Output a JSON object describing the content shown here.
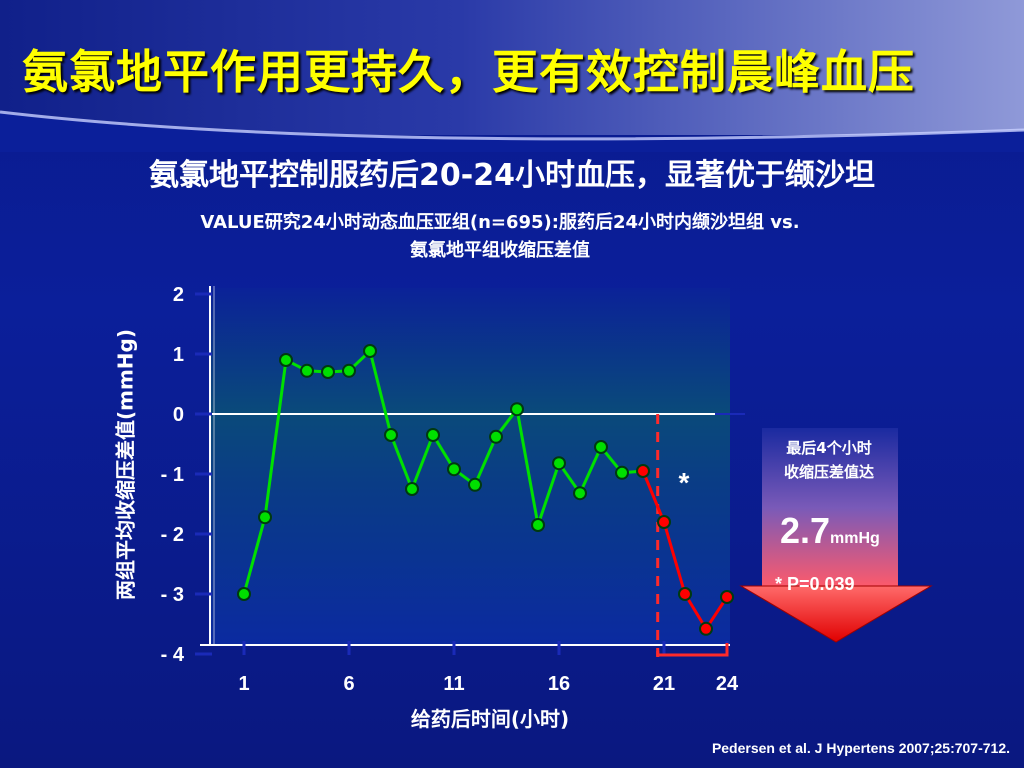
{
  "title": "氨氯地平作用更持久，更有效控制晨峰血压",
  "subtitle": "氨氯地平控制服药后20-24小时血压，显著优于缬沙坦",
  "study": {
    "line1": "VALUE研究24小时动态血压亚组(n=695):服药后24小时内缬沙坦组 vs.",
    "line2": "氨氯地平组收缩压差值"
  },
  "callout": {
    "line1": "最后4个小时",
    "line2": "收缩压差值达",
    "value": "2.7",
    "unit": "mmHg",
    "pvalue": "* P=0.039",
    "asterisk": "*"
  },
  "citation": "Pedersen et al. J Hypertens 2007;25:707-712.",
  "colors": {
    "early_series": "#00e000",
    "late_series": "#ff0000",
    "title": "#ffff00",
    "plot_bg_top": "#0a2a90",
    "plot_bg_bottom": "#006a5a"
  },
  "chart_data": {
    "type": "line",
    "xlabel": "给药后时间(小时)",
    "ylabel": "两组平均收缩压差值(mmHg)",
    "ylim": [
      -4,
      2
    ],
    "xlim": [
      1,
      24
    ],
    "yticks": [
      2,
      1,
      0,
      -1,
      -2,
      -3,
      -4
    ],
    "ytick_labels": [
      "2",
      "1",
      "0",
      "- 1",
      "- 2",
      "- 3",
      "- 4"
    ],
    "xtick_labels": [
      "1",
      "6",
      "11",
      "16",
      "21",
      "24"
    ],
    "xtick_positions": [
      1,
      6,
      11,
      16,
      21,
      24
    ],
    "x": [
      1,
      2,
      3,
      4,
      5,
      6,
      7,
      8,
      9,
      10,
      11,
      12,
      13,
      14,
      15,
      16,
      17,
      18,
      19,
      20,
      21,
      22,
      23,
      24
    ],
    "y": [
      -3.0,
      -1.72,
      0.9,
      0.72,
      0.7,
      0.72,
      1.05,
      -0.35,
      -1.25,
      -0.35,
      -0.92,
      -1.18,
      -0.38,
      0.08,
      -1.85,
      -0.82,
      -1.32,
      -0.55,
      -0.98,
      -0.95,
      -1.8,
      -3.0,
      -3.58,
      -3.05
    ],
    "series": [
      {
        "name": "",
        "x_range": [
          1,
          20
        ],
        "color": "#00e000"
      },
      {
        "name": "",
        "x_range": [
          20,
          24
        ],
        "color": "#ff0000"
      }
    ],
    "highlight_x": 20.7,
    "highlight_until": 24
  }
}
